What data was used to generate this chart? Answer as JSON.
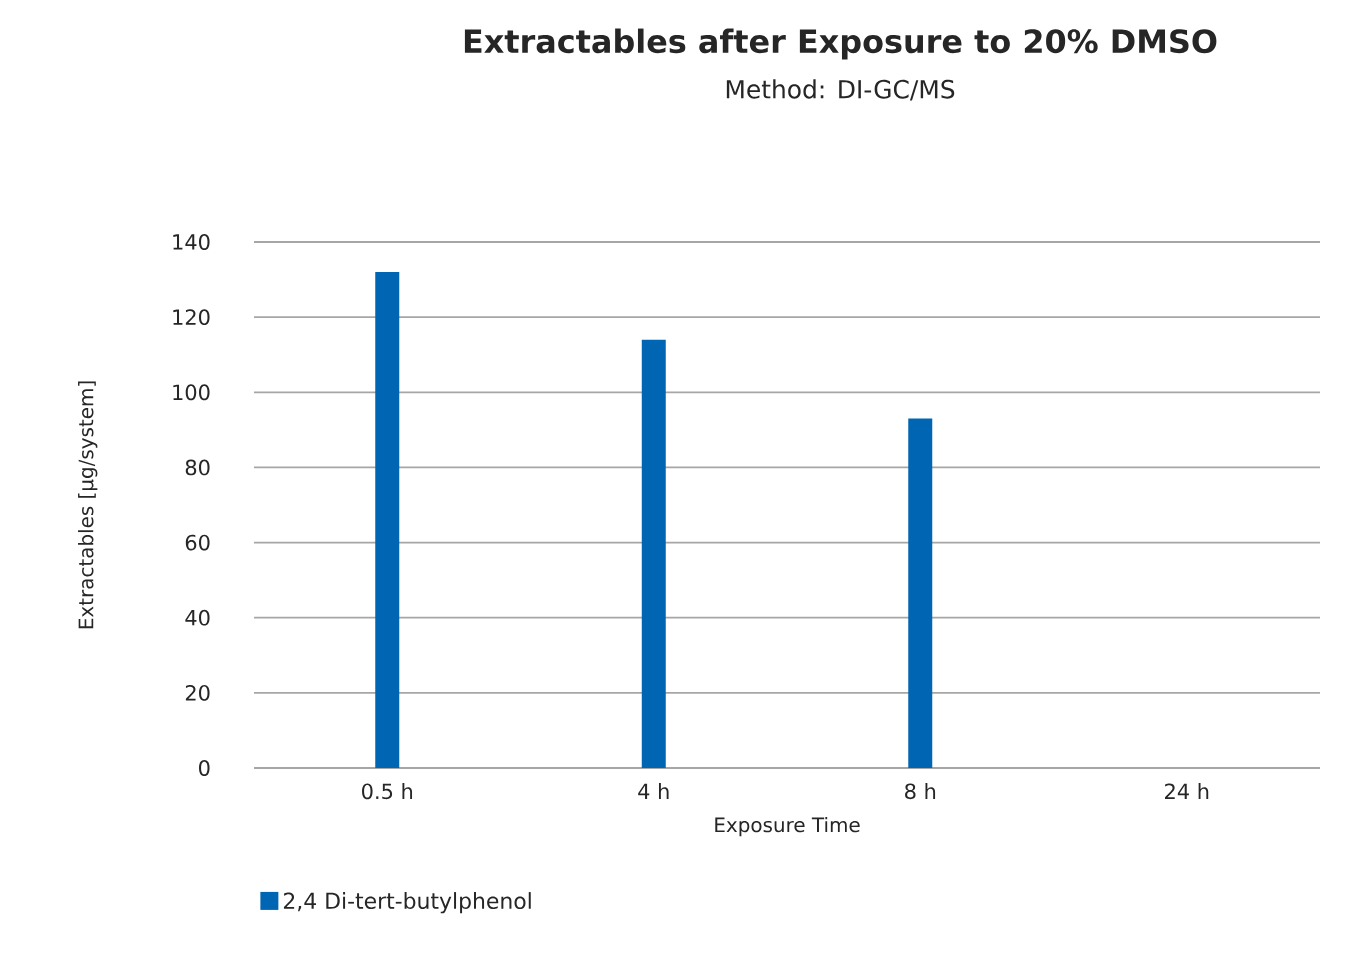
{
  "chart_data": {
    "type": "bar",
    "title": "Extractables after Exposure to 20% DMSO",
    "subtitle": "Method: DI-GC/MS",
    "xlabel": "Exposure Time",
    "ylabel": "Extractables [µg/system]",
    "categories": [
      "0.5 h",
      "4 h",
      "8 h",
      "24 h"
    ],
    "series": [
      {
        "name": "2,4 Di-tert-butylphenol",
        "color": "#0066b3",
        "values": [
          132,
          114,
          93,
          null
        ]
      }
    ],
    "ylim": [
      0,
      140
    ],
    "yticks": [
      0,
      20,
      40,
      60,
      80,
      100,
      120,
      140
    ],
    "grid": "y",
    "legend": "bottom"
  }
}
